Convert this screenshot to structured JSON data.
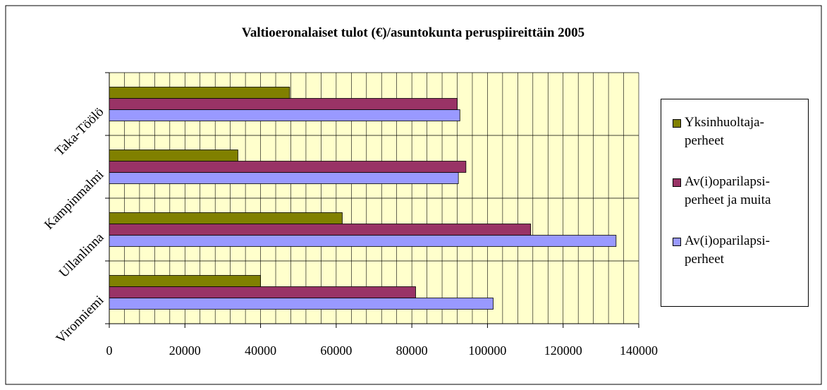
{
  "chart_data": {
    "type": "bar",
    "orientation": "horizontal",
    "title": "Valtioeronalaiset tulot (€)/asuntokunta peruspiireittäin 2005",
    "categories": [
      "Vironniemi",
      "Ullanlinna",
      "Kampinmalmi",
      "Taka-Töölö"
    ],
    "series": [
      {
        "name": "Av(i)oparilapsi-perheet",
        "color": "#9999ff",
        "values": [
          101500,
          134000,
          92300,
          92700
        ]
      },
      {
        "name": "Av(i)oparilapsi-perheet ja muita",
        "color": "#993366",
        "values": [
          81000,
          111400,
          94300,
          92000
        ]
      },
      {
        "name": "Yksinhuoltaja-perheet",
        "color": "#808000",
        "values": [
          40000,
          61600,
          34000,
          47700
        ]
      }
    ],
    "xlim": [
      0,
      140000
    ],
    "xticks": [
      0,
      20000,
      40000,
      60000,
      80000,
      100000,
      120000,
      140000
    ],
    "xminor": 4000,
    "grid": true,
    "legend": "right"
  }
}
